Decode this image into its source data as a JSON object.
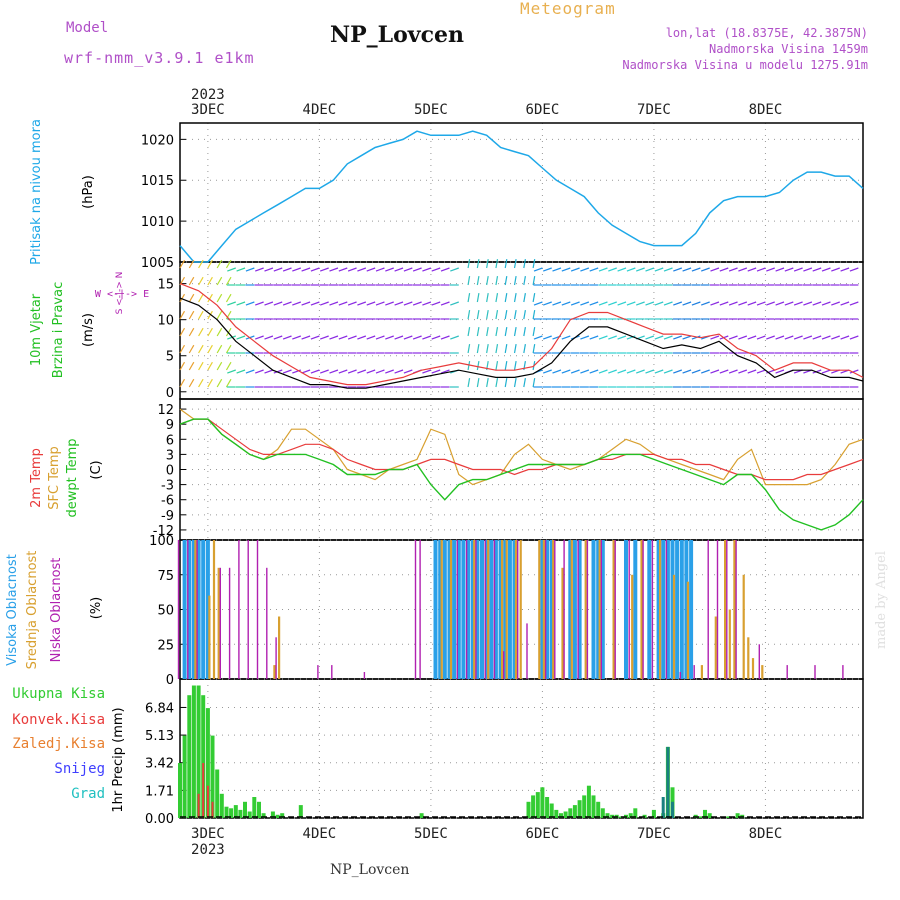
{
  "header": {
    "model_label": "Model",
    "model_name": "wrf-nmm_v3.9.1 e1km",
    "meteogram": "Meteogram",
    "station": "NP_Lovcen",
    "lonlat": "lon,lat (18.8375E, 42.3875N)",
    "elevation": "Nadmorska Visina 1459m",
    "model_elevation": "Nadmorska Visina u modelu 1275.91m"
  },
  "footer": {
    "station": "NP_Lovcen"
  },
  "watermark": "made by Angel",
  "colors": {
    "pressure": "#1ea8e8",
    "temp2m": "#e83c3c",
    "sfc": "#d8a030",
    "dewpt": "#22c022",
    "high_cloud": "#2aa0e8",
    "mid_cloud": "#d8a030",
    "low_cloud": "#b020b0",
    "precip_total": "#33cc33",
    "precip_conv": "#e83c3c",
    "precip_frozen": "#e88030",
    "snow": "#4040ff",
    "graupel": "#20c0c0",
    "wind_purple": "#8a2be2"
  },
  "chart_data": [
    {
      "type": "line",
      "ylabel_title": "Pritisak na nivou mora",
      "unit": "(hPa)",
      "x_day_labels": [
        "3DEC",
        "4DEC",
        "5DEC",
        "6DEC",
        "7DEC",
        "8DEC"
      ],
      "year_label": "2023",
      "ylim": [
        1005,
        1022
      ],
      "yticks": [
        1005,
        1010,
        1015,
        1020
      ],
      "series": [
        {
          "x": [
            0,
            3,
            6,
            9,
            12,
            15,
            18,
            21,
            24,
            27,
            30,
            33,
            36,
            39,
            42,
            45,
            48,
            51,
            54,
            57,
            60,
            63,
            66,
            69,
            72,
            75,
            78,
            81,
            84,
            87,
            90,
            93,
            96,
            99,
            102,
            105,
            108,
            111,
            114,
            117,
            120,
            123,
            126,
            129,
            132,
            135,
            138,
            141,
            144,
            147
          ],
          "values": [
            1007,
            1005,
            1005,
            1007,
            1009,
            1010,
            1011,
            1012,
            1013,
            1014,
            1014,
            1015,
            1017,
            1018,
            1019,
            1019.5,
            1020,
            1021,
            1020.5,
            1020.5,
            1020.5,
            1021,
            1020.5,
            1019,
            1018.5,
            1018,
            1016.5,
            1015,
            1014,
            1013,
            1011,
            1009.5,
            1008.5,
            1007.5,
            1007,
            1007,
            1007,
            1008.5,
            1011,
            1012.5,
            1013,
            1013,
            1013,
            1013.5,
            1015,
            1016,
            1016,
            1015.5,
            1015.5,
            1014
          ]
        }
      ]
    },
    {
      "type": "line",
      "ylabel_title": [
        "10m Vjetar",
        "Brzina i Pravac"
      ],
      "unit": "(m/s)",
      "compass": "W <-|-> E",
      "compass_vertical": "S <-|-> N",
      "ylim": [
        -1,
        18
      ],
      "yticks": [
        0,
        5,
        10,
        15
      ],
      "series": [
        {
          "name": "speed",
          "x": [
            0,
            4,
            8,
            12,
            16,
            20,
            24,
            28,
            32,
            36,
            40,
            44,
            48,
            52,
            56,
            60,
            64,
            68,
            72,
            76,
            80,
            84,
            88,
            92,
            96,
            100,
            104,
            108,
            112,
            116,
            120,
            124,
            128,
            132,
            136,
            140,
            144,
            147
          ],
          "values": [
            13,
            12,
            10,
            7,
            5,
            3,
            2,
            1,
            1,
            0.5,
            0.5,
            1,
            1.5,
            2,
            2.5,
            3,
            2.5,
            2,
            2,
            2.5,
            4,
            7,
            9,
            9,
            8,
            7,
            6,
            6.5,
            6,
            7,
            5,
            4,
            2,
            3,
            3,
            2,
            2,
            1.5
          ]
        },
        {
          "name": "gust",
          "x": [
            0,
            4,
            8,
            12,
            16,
            20,
            24,
            28,
            32,
            36,
            40,
            44,
            48,
            52,
            56,
            60,
            64,
            68,
            72,
            76,
            80,
            84,
            88,
            92,
            96,
            100,
            104,
            108,
            112,
            116,
            120,
            124,
            128,
            132,
            136,
            140,
            144,
            147
          ],
          "values": [
            15,
            14,
            12,
            9,
            7,
            5,
            3.5,
            2,
            1.5,
            1,
            1,
            1.5,
            2,
            3,
            3.5,
            4,
            3.5,
            3,
            3,
            3.5,
            6,
            10,
            11,
            11,
            10,
            9,
            8,
            8,
            7.5,
            8,
            6,
            5,
            3,
            4,
            4,
            3,
            3,
            2
          ]
        }
      ]
    },
    {
      "type": "line",
      "ylabel_title": [
        "2m Temp",
        "SFC Temp",
        "dewpt Temp"
      ],
      "unit": "(C)",
      "ylim": [
        -14,
        14
      ],
      "yticks": [
        12,
        9,
        6,
        3,
        0,
        -3,
        -6,
        -9,
        -12
      ],
      "series": [
        {
          "name": "2m Temp",
          "x": [
            0,
            3,
            6,
            9,
            12,
            15,
            18,
            21,
            24,
            27,
            30,
            33,
            36,
            39,
            42,
            45,
            48,
            51,
            54,
            57,
            60,
            63,
            66,
            69,
            72,
            75,
            78,
            81,
            84,
            87,
            90,
            93,
            96,
            99,
            102,
            105,
            108,
            111,
            114,
            117,
            120,
            123,
            126,
            129,
            132,
            135,
            138,
            141,
            144,
            147
          ],
          "values": [
            9,
            10,
            10,
            8,
            6,
            4,
            3,
            3,
            4,
            5,
            5,
            4,
            2,
            1,
            0,
            0,
            0,
            1,
            2,
            2,
            1,
            0,
            0,
            0,
            -1,
            0,
            0,
            1,
            1,
            1,
            2,
            2,
            3,
            3,
            3,
            2,
            2,
            1,
            1,
            0,
            -1,
            -1,
            -2,
            -2,
            -2,
            -1,
            -1,
            0,
            1,
            2
          ]
        },
        {
          "name": "SFC Temp",
          "x": [
            0,
            3,
            6,
            9,
            12,
            15,
            18,
            21,
            24,
            27,
            30,
            33,
            36,
            39,
            42,
            45,
            48,
            51,
            54,
            57,
            60,
            63,
            66,
            69,
            72,
            75,
            78,
            81,
            84,
            87,
            90,
            93,
            96,
            99,
            102,
            105,
            108,
            111,
            114,
            117,
            120,
            123,
            126,
            129,
            132,
            135,
            138,
            141,
            144,
            147
          ],
          "values": [
            12,
            10,
            10,
            7,
            5,
            3,
            2,
            4,
            8,
            8,
            6,
            4,
            0,
            -1,
            -2,
            0,
            1,
            2,
            8,
            7,
            -1,
            -3,
            -2,
            -1,
            3,
            5,
            2,
            1,
            0,
            1,
            2,
            4,
            6,
            5,
            3,
            2,
            1,
            0,
            -1,
            -2,
            2,
            4,
            -3,
            -3,
            -3,
            -3,
            -2,
            1,
            5,
            6
          ]
        },
        {
          "name": "dewpt Temp",
          "x": [
            0,
            3,
            6,
            9,
            12,
            15,
            18,
            21,
            24,
            27,
            30,
            33,
            36,
            39,
            42,
            45,
            48,
            51,
            54,
            57,
            60,
            63,
            66,
            69,
            72,
            75,
            78,
            81,
            84,
            87,
            90,
            93,
            96,
            99,
            102,
            105,
            108,
            111,
            114,
            117,
            120,
            123,
            126,
            129,
            132,
            135,
            138,
            141,
            144,
            147
          ],
          "values": [
            9,
            10,
            10,
            7,
            5,
            3,
            2,
            3,
            3,
            3,
            2,
            1,
            -1,
            -1,
            -1,
            0,
            0,
            1,
            -3,
            -6,
            -3,
            -2,
            -2,
            -1,
            0,
            1,
            1,
            1,
            1,
            1,
            2,
            3,
            3,
            3,
            2,
            1,
            0,
            -1,
            -2,
            -3,
            -1,
            -1,
            -4,
            -8,
            -10,
            -11,
            -12,
            -11,
            -9,
            -6
          ]
        }
      ]
    },
    {
      "type": "bar",
      "ylabel_title": [
        "Visoka Oblacnost",
        "Srednja Oblacnost",
        "Niska Oblacnost"
      ],
      "unit": "(%)",
      "ylim": [
        0,
        100
      ],
      "yticks": [
        0,
        25,
        50,
        75,
        100
      ],
      "series": [
        {
          "name": "Visoka Oblacnost",
          "x": [
            1,
            2,
            3,
            4,
            5,
            6,
            55,
            56,
            57,
            58,
            59,
            60,
            61,
            62,
            63,
            64,
            65,
            66,
            67,
            68,
            69,
            70,
            71,
            72,
            78,
            79,
            80,
            84,
            85,
            86,
            89,
            90,
            91,
            96,
            98,
            101,
            103,
            104,
            105,
            106,
            107,
            108,
            109,
            110
          ],
          "values": [
            100,
            100,
            100,
            100,
            100,
            100,
            100,
            100,
            100,
            100,
            100,
            100,
            100,
            100,
            100,
            100,
            100,
            100,
            100,
            100,
            100,
            100,
            100,
            100,
            100,
            100,
            100,
            100,
            100,
            100,
            100,
            100,
            100,
            100,
            100,
            100,
            100,
            100,
            100,
            100,
            100,
            100,
            100,
            100
          ]
        },
        {
          "name": "Srednja Oblacnost",
          "x": [
            3,
            6,
            7,
            8,
            20,
            21,
            56,
            58,
            63,
            66,
            69,
            70,
            72,
            73,
            77,
            78,
            80,
            82,
            84,
            87,
            90,
            93,
            97,
            99,
            103,
            106,
            109,
            112,
            115,
            117,
            118,
            119,
            121,
            122,
            123,
            125
          ],
          "values": [
            100,
            60,
            100,
            80,
            10,
            45,
            100,
            100,
            100,
            100,
            100,
            100,
            100,
            100,
            100,
            100,
            100,
            80,
            100,
            100,
            100,
            100,
            75,
            100,
            100,
            75,
            70,
            10,
            45,
            100,
            50,
            100,
            75,
            30,
            15,
            10
          ]
        },
        {
          "name": "Niska Oblacnost",
          "x": [
            0,
            2,
            4,
            9,
            11,
            13,
            15,
            17,
            19,
            21,
            30,
            33,
            40,
            51,
            52,
            60,
            62,
            64,
            66,
            68,
            70,
            73,
            75,
            79,
            81,
            83,
            86,
            88,
            91,
            94,
            97,
            100,
            102,
            105,
            108,
            111,
            114,
            116,
            118,
            120,
            125,
            131,
            137,
            143
          ],
          "values": [
            100,
            100,
            100,
            80,
            80,
            100,
            100,
            100,
            80,
            30,
            10,
            10,
            5,
            100,
            100,
            100,
            100,
            100,
            100,
            100,
            20,
            100,
            40,
            100,
            100,
            100,
            100,
            100,
            100,
            100,
            100,
            100,
            100,
            100,
            5,
            10,
            100,
            100,
            100,
            100,
            25,
            10,
            10,
            10
          ]
        }
      ]
    },
    {
      "type": "bar",
      "ylabel_title": "1hr Precip",
      "unit": "(mm)",
      "legend": [
        "Ukupna Kisa",
        "Konvek.Kisa",
        "Zaledj.Kisa",
        "Snijeg",
        "Grad"
      ],
      "ylim": [
        0,
        8.6
      ],
      "yticks": [
        0,
        1.71,
        3.42,
        5.13,
        6.84
      ],
      "series": [
        {
          "name": "Ukupna Kisa",
          "x": [
            0,
            1,
            2,
            3,
            4,
            5,
            6,
            7,
            8,
            9,
            10,
            11,
            12,
            13,
            14,
            15,
            16,
            17,
            18,
            20,
            21,
            22,
            26,
            52,
            75,
            76,
            77,
            78,
            79,
            80,
            81,
            82,
            83,
            84,
            85,
            86,
            87,
            88,
            89,
            90,
            91,
            92,
            93,
            94,
            95,
            96,
            97,
            98,
            100,
            102,
            104,
            105,
            106,
            111,
            112,
            113,
            114,
            118,
            120,
            121
          ],
          "values": [
            3.4,
            5.1,
            7.6,
            8.2,
            8.2,
            7.6,
            6.8,
            5.1,
            3.0,
            1.5,
            0.7,
            0.6,
            0.8,
            0.5,
            1.0,
            0.4,
            1.3,
            1.0,
            0.3,
            0.4,
            0.2,
            0.3,
            0.8,
            0.3,
            1.0,
            1.4,
            1.6,
            1.9,
            1.3,
            0.9,
            0.5,
            0.3,
            0.4,
            0.6,
            0.8,
            1.1,
            1.4,
            2.0,
            1.4,
            1.0,
            0.6,
            0.3,
            0.2,
            0.2,
            0.1,
            0.2,
            0.3,
            0.6,
            0.2,
            0.5,
            0.3,
            4.4,
            1.9,
            0.2,
            0.1,
            0.5,
            0.3,
            0.1,
            0.3,
            0.2
          ]
        },
        {
          "name": "Konvek.Kisa",
          "x": [
            4,
            5,
            6,
            7,
            105,
            106
          ],
          "values": [
            1.5,
            3.4,
            2.0,
            1.0,
            1.2,
            0.6
          ]
        },
        {
          "name": "Grad",
          "x": [
            104,
            105,
            106
          ],
          "values": [
            1.3,
            4.4,
            1.0
          ]
        }
      ]
    }
  ]
}
